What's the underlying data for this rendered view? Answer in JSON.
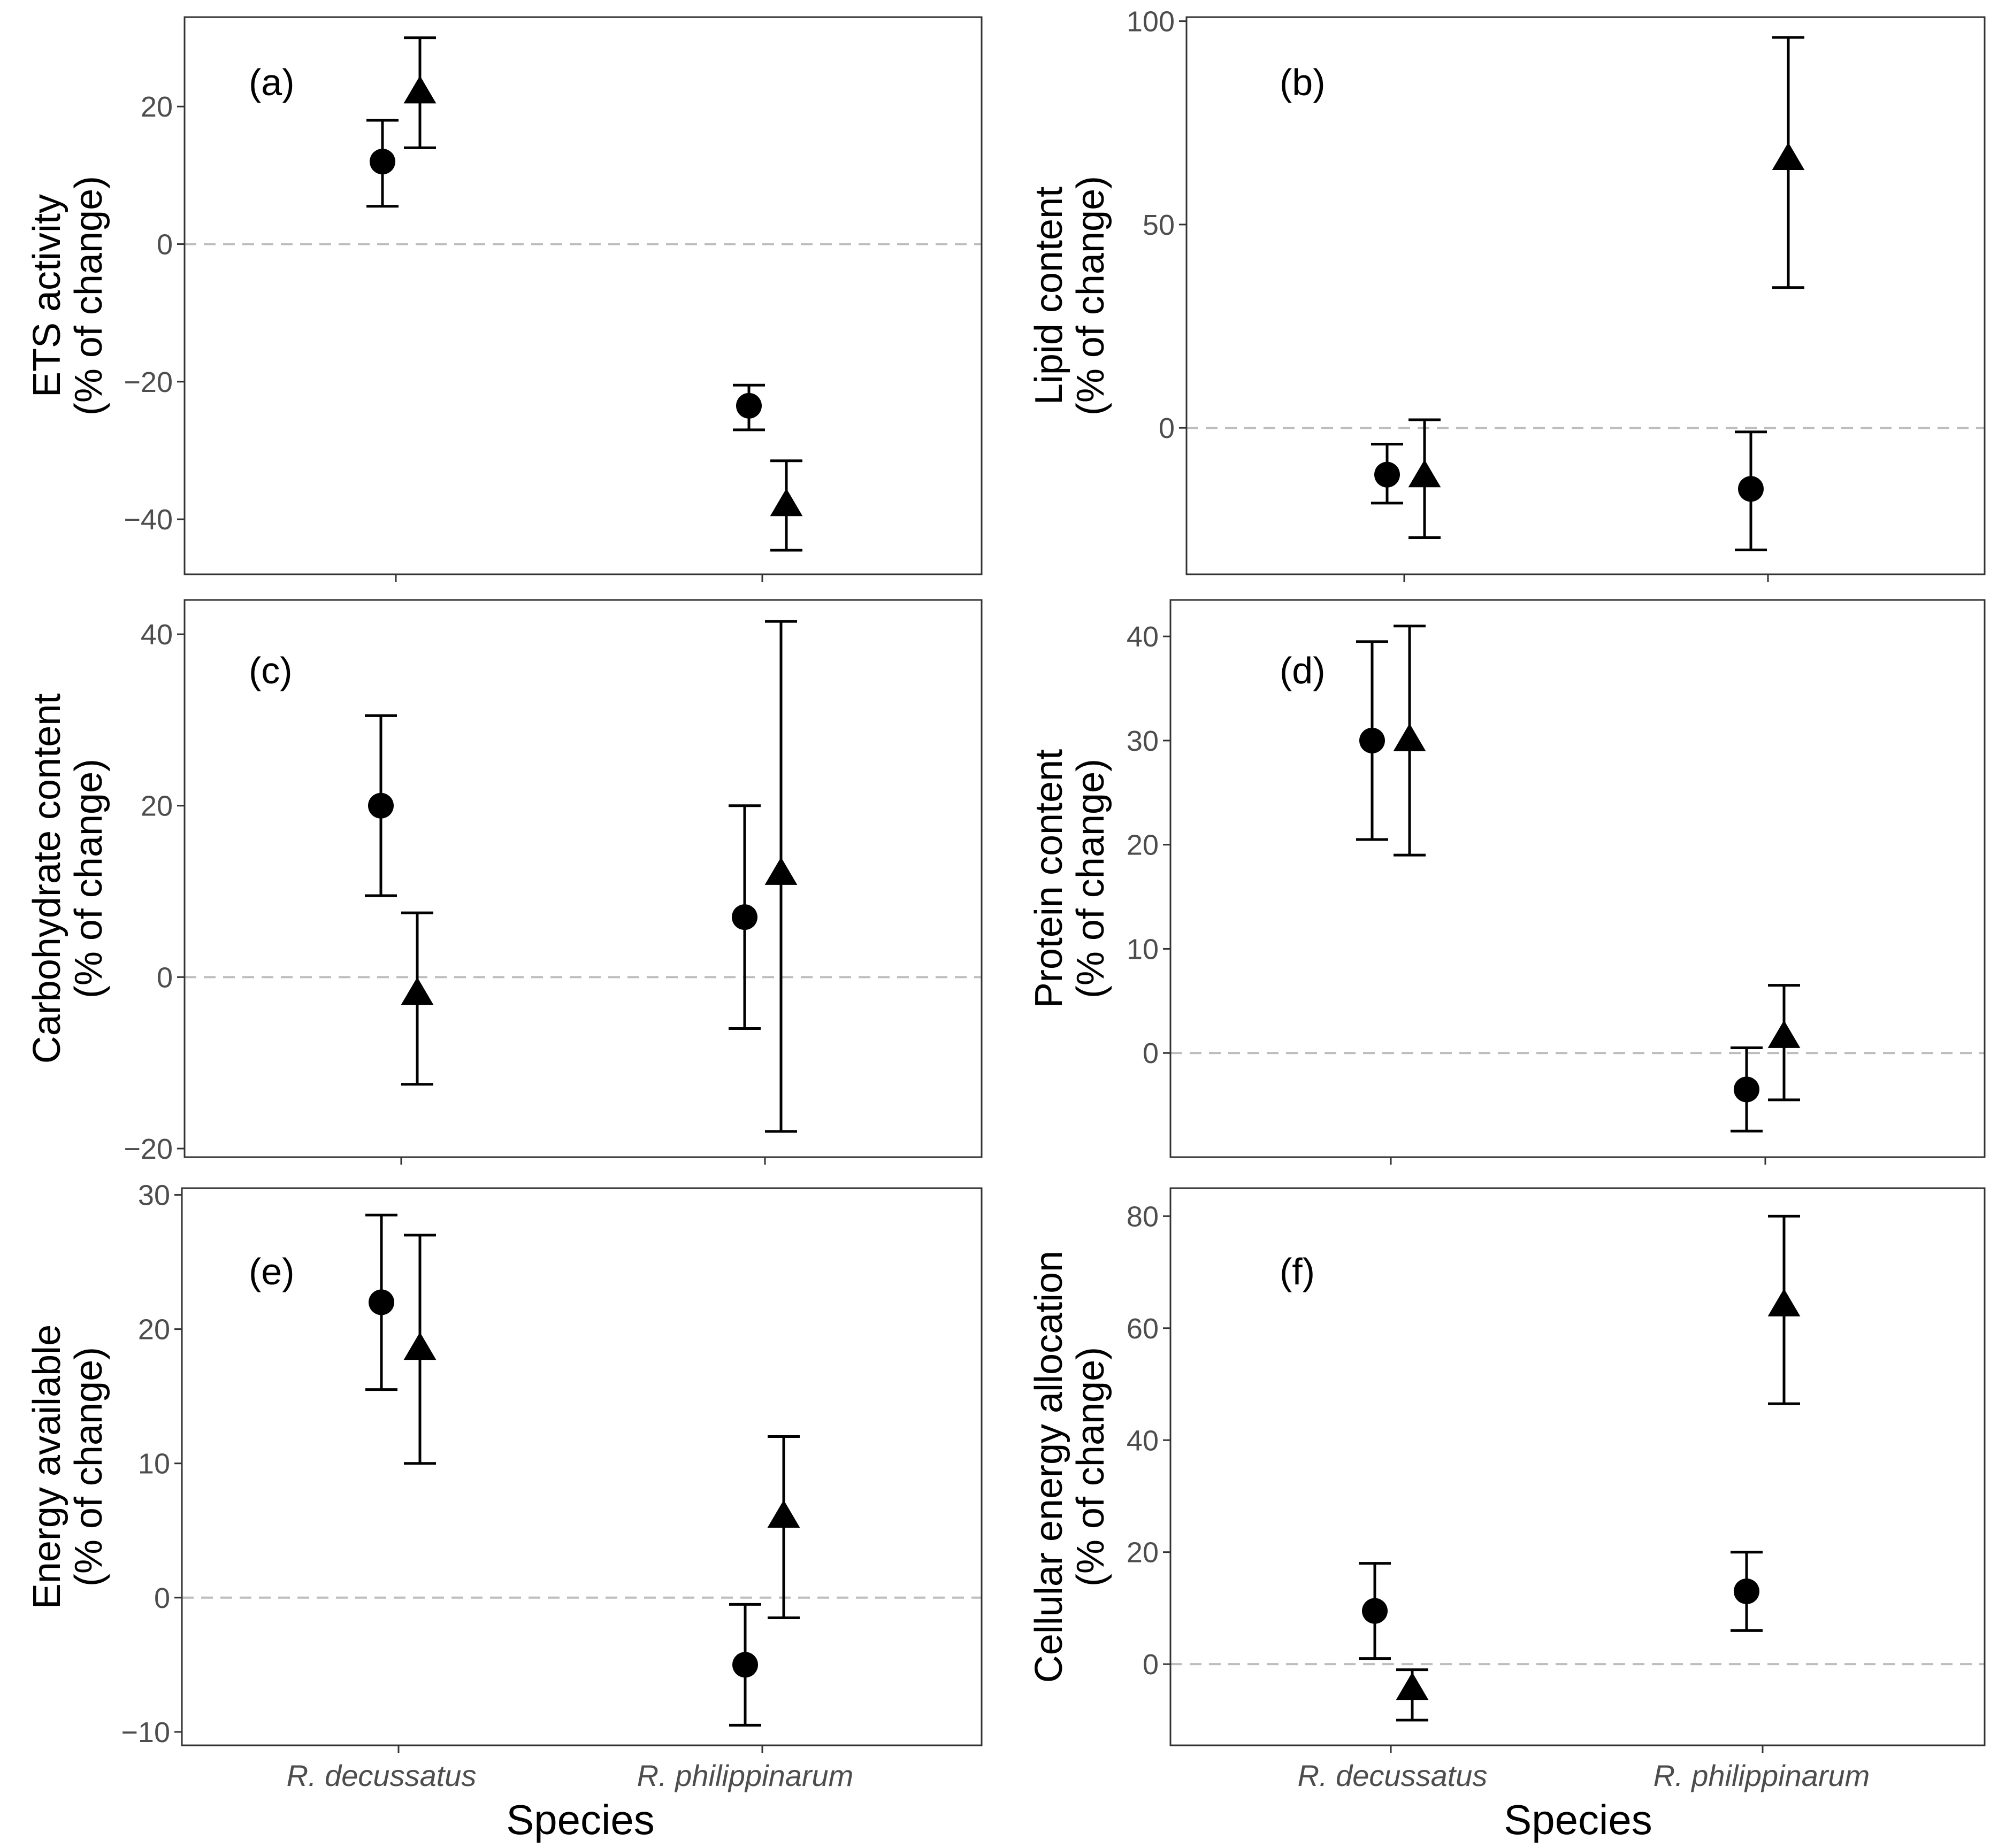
{
  "figure": {
    "x_axis_title": "Species",
    "y_axis_unit": "(% of change)",
    "colors": {
      "marker": "#000000",
      "zero_line": "#bdbdbd",
      "tick_text": "#4d4d4d"
    }
  },
  "chart_data": [
    {
      "type": "scatter",
      "panel": "(a)",
      "ylabel": "ETS activity",
      "categories": [
        "R. decussatus",
        "R. philippinarum"
      ],
      "ylim": [
        -48,
        33
      ],
      "yticks": [
        -40,
        -20,
        0,
        20
      ],
      "series": [
        {
          "name": "circle",
          "shape": "circle",
          "values": [
            12,
            -23.5
          ],
          "lower": [
            5.5,
            -27
          ],
          "upper": [
            18,
            -20.5
          ]
        },
        {
          "name": "triangle",
          "shape": "triangle",
          "values": [
            22,
            -38
          ],
          "lower": [
            14,
            -44.5
          ],
          "upper": [
            30,
            -31.5
          ]
        }
      ]
    },
    {
      "type": "scatter",
      "panel": "(b)",
      "ylabel": "Lipid content",
      "categories": [
        "R. decussatus",
        "R. philippinarum"
      ],
      "ylim": [
        -36,
        101
      ],
      "yticks": [
        0,
        50,
        100
      ],
      "series": [
        {
          "name": "circle",
          "shape": "circle",
          "values": [
            -11.5,
            -15
          ],
          "lower": [
            -18.5,
            -30
          ],
          "upper": [
            -4,
            -1
          ]
        },
        {
          "name": "triangle",
          "shape": "triangle",
          "values": [
            -12,
            66
          ],
          "lower": [
            -27,
            34.5
          ],
          "upper": [
            2,
            96
          ]
        }
      ]
    },
    {
      "type": "scatter",
      "panel": "(c)",
      "ylabel": "Carbohydrate content",
      "categories": [
        "R. decussatus",
        "R. philippinarum"
      ],
      "ylim": [
        -21,
        44
      ],
      "yticks": [
        -20,
        0,
        20,
        40
      ],
      "series": [
        {
          "name": "circle",
          "shape": "circle",
          "values": [
            20,
            7
          ],
          "lower": [
            9.5,
            -6
          ],
          "upper": [
            30.5,
            20
          ]
        },
        {
          "name": "triangle",
          "shape": "triangle",
          "values": [
            -2,
            12
          ],
          "lower": [
            -12.5,
            -18
          ],
          "upper": [
            7.5,
            41.5
          ]
        }
      ]
    },
    {
      "type": "scatter",
      "panel": "(d)",
      "ylabel": "Protein content",
      "categories": [
        "R. decussatus",
        "R. philippinarum"
      ],
      "ylim": [
        -10,
        43.5
      ],
      "yticks": [
        0,
        10,
        20,
        30,
        40
      ],
      "series": [
        {
          "name": "circle",
          "shape": "circle",
          "values": [
            30,
            -3.5
          ],
          "lower": [
            20.5,
            -7.5
          ],
          "upper": [
            39.5,
            0.5
          ]
        },
        {
          "name": "triangle",
          "shape": "triangle",
          "values": [
            30,
            1.5
          ],
          "lower": [
            19,
            -4.5
          ],
          "upper": [
            41,
            6.5
          ]
        }
      ]
    },
    {
      "type": "scatter",
      "panel": "(e)",
      "ylabel": "Energy available",
      "categories": [
        "R. decussatus",
        "R. philippinarum"
      ],
      "ylim": [
        -11,
        30.5
      ],
      "yticks": [
        -10,
        0,
        10,
        20,
        30
      ],
      "series": [
        {
          "name": "circle",
          "shape": "circle",
          "values": [
            22,
            -5
          ],
          "lower": [
            15.5,
            -9.5
          ],
          "upper": [
            28.5,
            -0.5
          ]
        },
        {
          "name": "triangle",
          "shape": "triangle",
          "values": [
            18.5,
            6
          ],
          "lower": [
            10,
            -1.5
          ],
          "upper": [
            27,
            12
          ]
        }
      ]
    },
    {
      "type": "scatter",
      "panel": "(f)",
      "ylabel": "Cellular energy allocation",
      "categories": [
        "R. decussatus",
        "R. philippinarum"
      ],
      "ylim": [
        -14.5,
        85
      ],
      "yticks": [
        0,
        20,
        40,
        60,
        80
      ],
      "series": [
        {
          "name": "circle",
          "shape": "circle",
          "values": [
            9.5,
            13
          ],
          "lower": [
            1,
            6
          ],
          "upper": [
            18,
            20
          ]
        },
        {
          "name": "triangle",
          "shape": "triangle",
          "values": [
            -4.5,
            64
          ],
          "lower": [
            -10,
            46.5
          ],
          "upper": [
            -1,
            80
          ]
        }
      ]
    }
  ]
}
